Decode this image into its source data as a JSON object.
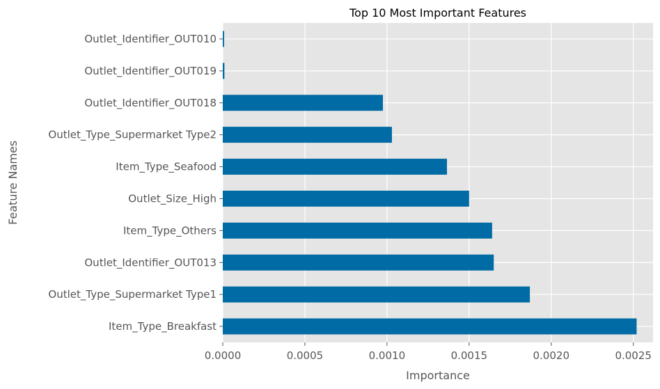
{
  "chart_data": {
    "type": "bar",
    "orientation": "horizontal",
    "title": "Top 10 Most Important Features",
    "xlabel": "Importance",
    "ylabel": "Feature Names",
    "categories": [
      "Item_Type_Breakfast",
      "Outlet_Type_Supermarket Type1",
      "Outlet_Identifier_OUT013",
      "Item_Type_Others",
      "Outlet_Size_High",
      "Item_Type_Seafood",
      "Outlet_Type_Supermarket Type2",
      "Outlet_Identifier_OUT018",
      "Outlet_Identifier_OUT019",
      "Outlet_Identifier_OUT010"
    ],
    "values": [
      0.00252,
      0.00187,
      0.00165,
      0.00164,
      0.0015,
      0.001365,
      0.00103,
      0.000975,
      1e-05,
      8e-06
    ],
    "xlim": [
      0,
      0.00262
    ],
    "xticks": [
      0.0,
      0.0005,
      0.001,
      0.0015,
      0.002,
      0.0025
    ],
    "xtick_labels": [
      "0.0000",
      "0.0005",
      "0.0010",
      "0.0015",
      "0.0020",
      "0.0025"
    ],
    "grid": true,
    "legend": "none",
    "colors": {
      "bar": "#006BA4",
      "plot_background": "#E5E5E5",
      "grid": "#FFFFFF",
      "text": "#555555",
      "title": "#000000"
    }
  }
}
